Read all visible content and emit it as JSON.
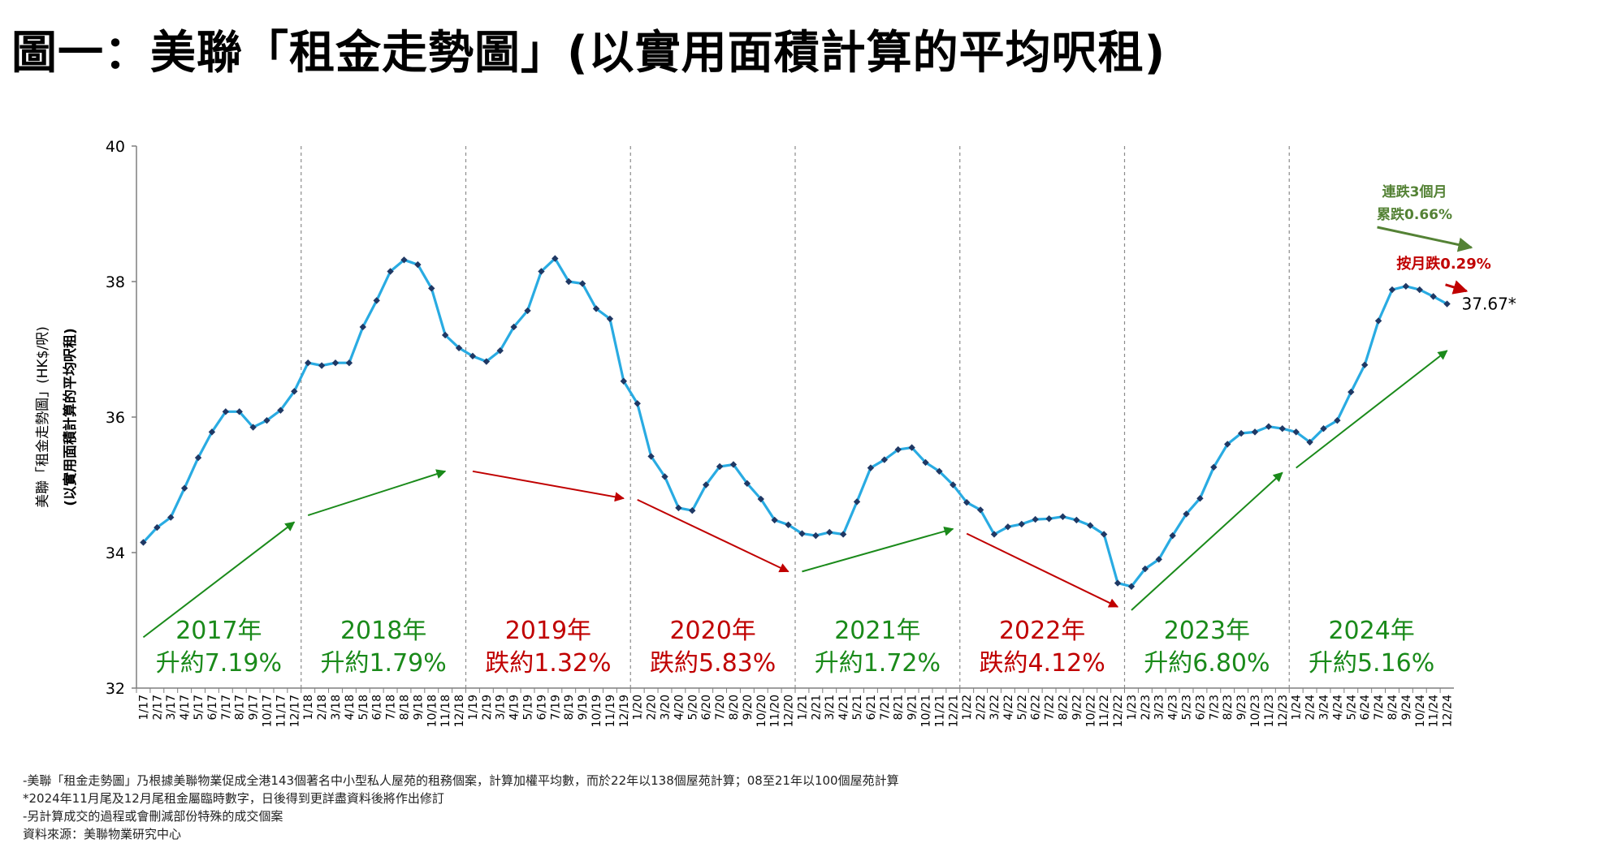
{
  "title": "圖一：美聯「租金走勢圖」(以實用面積計算的平均呎租)",
  "colors": {
    "line": "#29ABE2",
    "marker": "#1F3864",
    "up": "#1A8A1A",
    "down": "#C00000",
    "trend_note": "#548235",
    "divider": "#8C8C8C"
  },
  "chart_data": {
    "type": "line",
    "ylabel": [
      "美聯「租金走勢圖」(HK$/呎)",
      "(以實用面積計算的平均呎租)"
    ],
    "ylim": [
      32,
      40
    ],
    "yticks": [
      32,
      34,
      36,
      38,
      40
    ],
    "grid": false,
    "x": [
      "1/17",
      "2/17",
      "3/17",
      "4/17",
      "5/17",
      "6/17",
      "7/17",
      "8/17",
      "9/17",
      "10/17",
      "11/17",
      "12/17",
      "1/18",
      "2/18",
      "3/18",
      "4/18",
      "5/18",
      "6/18",
      "7/18",
      "8/18",
      "9/18",
      "10/18",
      "11/18",
      "12/18",
      "1/19",
      "2/19",
      "3/19",
      "4/19",
      "5/19",
      "6/19",
      "7/19",
      "8/19",
      "9/19",
      "10/19",
      "11/19",
      "12/19",
      "1/20",
      "2/20",
      "3/20",
      "4/20",
      "5/20",
      "6/20",
      "7/20",
      "8/20",
      "9/20",
      "10/20",
      "11/20",
      "12/20",
      "1/21",
      "2/21",
      "3/21",
      "4/21",
      "5/21",
      "6/21",
      "7/21",
      "8/21",
      "9/21",
      "10/21",
      "11/21",
      "12/21",
      "1/22",
      "2/22",
      "3/22",
      "4/22",
      "5/22",
      "6/22",
      "7/22",
      "8/22",
      "9/22",
      "10/22",
      "11/22",
      "12/22",
      "1/23",
      "2/23",
      "3/23",
      "4/23",
      "5/23",
      "6/23",
      "7/23",
      "8/23",
      "9/23",
      "10/23",
      "11/23",
      "12/23",
      "1/24",
      "2/24",
      "3/24",
      "4/24",
      "5/24",
      "6/24",
      "7/24",
      "8/24",
      "9/24",
      "10/24",
      "11/24",
      "12/24"
    ],
    "series": [
      {
        "values": [
          34.15,
          34.37,
          34.52,
          34.95,
          35.4,
          35.78,
          36.08,
          36.08,
          35.85,
          35.95,
          36.1,
          36.38,
          36.8,
          36.76,
          36.8,
          36.8,
          37.33,
          37.72,
          38.15,
          38.32,
          38.25,
          37.9,
          37.21,
          37.02,
          36.9,
          36.82,
          36.98,
          37.33,
          37.57,
          38.15,
          38.34,
          38.0,
          37.97,
          37.6,
          37.45,
          36.53,
          36.2,
          35.42,
          35.12,
          34.66,
          34.62,
          35.0,
          35.27,
          35.3,
          35.02,
          34.79,
          34.48,
          34.41,
          34.28,
          34.25,
          34.3,
          34.27,
          34.75,
          35.25,
          35.37,
          35.52,
          35.55,
          35.33,
          35.2,
          35.0,
          34.74,
          34.63,
          34.27,
          34.38,
          34.42,
          34.49,
          34.5,
          34.53,
          34.48,
          34.4,
          34.27,
          33.55,
          33.5,
          33.76,
          33.9,
          34.25,
          34.57,
          34.8,
          35.26,
          35.6,
          35.76,
          35.78,
          35.86,
          35.83,
          35.78,
          35.63,
          35.83,
          35.95,
          36.37,
          36.77,
          37.42,
          37.88,
          37.93,
          37.88,
          37.78,
          37.67
        ]
      }
    ],
    "years": [
      {
        "year": "2017年",
        "change": "升約7.19%",
        "direction": "up"
      },
      {
        "year": "2018年",
        "change": "升約1.79%",
        "direction": "up"
      },
      {
        "year": "2019年",
        "change": "跌約1.32%",
        "direction": "down"
      },
      {
        "year": "2020年",
        "change": "跌約5.83%",
        "direction": "down"
      },
      {
        "year": "2021年",
        "change": "升約1.72%",
        "direction": "up"
      },
      {
        "year": "2022年",
        "change": "跌約4.12%",
        "direction": "down"
      },
      {
        "year": "2023年",
        "change": "升約6.80%",
        "direction": "up"
      },
      {
        "year": "2024年",
        "change": "升約5.16%",
        "direction": "up"
      }
    ],
    "trend_arrows": [
      {
        "from": [
          "1/17",
          32.75
        ],
        "to": [
          "12/17",
          34.45
        ],
        "direction": "up"
      },
      {
        "from": [
          "1/18",
          34.55
        ],
        "to": [
          "11/18",
          35.2
        ],
        "direction": "up"
      },
      {
        "from": [
          "1/19",
          35.2
        ],
        "to": [
          "12/19",
          34.8
        ],
        "direction": "down"
      },
      {
        "from": [
          "1/20",
          34.78
        ],
        "to": [
          "12/20",
          33.72
        ],
        "direction": "down"
      },
      {
        "from": [
          "1/21",
          33.72
        ],
        "to": [
          "12/21",
          34.35
        ],
        "direction": "up"
      },
      {
        "from": [
          "1/22",
          34.28
        ],
        "to": [
          "12/22",
          33.2
        ],
        "direction": "down"
      },
      {
        "from": [
          "1/23",
          33.15
        ],
        "to": [
          "12/23",
          35.18
        ],
        "direction": "up"
      },
      {
        "from": [
          "1/24",
          35.25
        ],
        "to": [
          "12/24",
          36.98
        ],
        "direction": "up"
      }
    ],
    "annotations": {
      "last_value_label": "37.67*",
      "monthly_change": "按月跌0.29%",
      "streak_line1": "連跌3個月",
      "streak_line2": "累跌0.66%"
    }
  },
  "notes": [
    "-美聯「租金走勢圖」乃根據美聯物業促成全港143個著名中小型私人屋苑的租務個案，計算加權平均數，而於22年以138個屋苑計算；08至21年以100個屋苑計算",
    "*2024年11月尾及12月尾租金屬臨時數字，日後得到更詳盡資料後將作出修訂",
    "-另計算成交的過程或會刪減部份特殊的成交個案",
    "資料來源：美聯物業研究中心"
  ]
}
